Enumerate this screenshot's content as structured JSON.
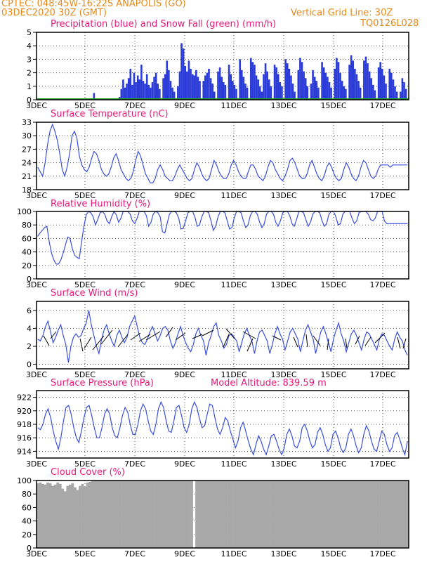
{
  "header": {
    "line1_left": "CPTEC:   048:45W-16:22S   ANAPOLIS (GO)",
    "line2_left": "03DEC2020 30Z (GMT)",
    "line2_right": "Vertical Grid Line: 30Z",
    "line3_right": "TQ0126L028"
  },
  "colors": {
    "header": "#e88a1a",
    "panel_title": "#e8187a",
    "precip": "#2a3bd8",
    "snow": "#1aa01a",
    "line": "#3a4fe0",
    "arrow": "#000000",
    "cloud": "#a8a8a8"
  },
  "chart_data": [
    {
      "type": "bar",
      "title": "Precipitation (blue) and Snow Fall (green) (mm/h)",
      "x_tick_labels": [
        "3DEC",
        "5DEC",
        "7DEC",
        "9DEC",
        "11DEC",
        "13DEC",
        "15DEC",
        "17DEC"
      ],
      "ylim": [
        0,
        5
      ],
      "y_ticks": [
        0,
        1,
        2,
        3,
        4,
        5
      ],
      "series": [
        {
          "name": "Precipitation (blue)",
          "values": [
            0,
            0,
            0,
            0,
            0,
            0,
            0,
            0,
            0,
            0,
            0,
            0,
            0,
            0,
            0,
            0,
            0,
            0,
            0,
            0,
            0,
            0,
            0,
            0,
            0,
            0,
            0,
            0,
            0,
            0,
            0,
            0.5,
            0,
            0,
            0,
            0,
            0,
            0,
            0,
            0,
            0,
            0,
            0,
            0,
            0,
            0.2,
            0.8,
            1.5,
            0.9,
            1.2,
            1.6,
            2.3,
            1.1,
            2.0,
            1.3,
            1.8,
            1.5,
            2.6,
            1.4,
            1.2,
            1.9,
            1.1,
            0.9,
            1.3,
            1.7,
            2.0,
            1.2,
            0.8,
            0,
            1.6,
            1.9,
            2.9,
            2.2,
            1.4,
            0.9,
            0.6,
            0,
            1.0,
            2.1,
            4.2,
            3.8,
            2.5,
            2.1,
            2.9,
            2.3,
            1.9,
            1.8,
            2.2,
            1.7,
            1.4,
            0,
            1.4,
            1.8,
            2.0,
            2.3,
            1.6,
            1.2,
            0.6,
            0,
            2.1,
            2.4,
            1.7,
            1.3,
            1.1,
            0,
            2.6,
            1.9,
            1.4,
            1.1,
            0.8,
            0,
            3.0,
            2.2,
            1.7,
            1.2,
            0.9,
            0,
            3.1,
            2.8,
            2.6,
            1.8,
            1.5,
            1.0,
            0.6,
            1.9,
            2.7,
            2.1,
            1.5,
            1.0,
            0,
            2.6,
            2.4,
            1.9,
            1.3,
            1.0,
            0,
            3.0,
            2.7,
            2.3,
            1.8,
            1.2,
            0.6,
            0,
            2.2,
            3.1,
            2.8,
            2.1,
            1.6,
            1.0,
            0,
            1.2,
            2.2,
            1.7,
            1.4,
            0.9,
            0,
            2.8,
            2.4,
            2.0,
            1.7,
            1.3,
            0.9,
            0,
            2.3,
            3.1,
            2.8,
            2.0,
            1.4,
            1.0,
            0.8,
            0,
            2.6,
            3.3,
            2.9,
            2.3,
            1.9,
            1.4,
            0.9,
            0,
            2.9,
            3.2,
            2.7,
            2.1,
            1.6,
            1.1,
            0.7,
            0,
            2.4,
            2.8,
            2.3,
            1.8,
            1.2,
            0,
            2.3,
            2.0,
            1.5,
            1.0,
            0.6,
            0,
            0.6,
            1.6,
            1.3,
            0.8,
            0
          ]
        },
        {
          "name": "Snow Fall (green)",
          "values": [
            0
          ]
        }
      ]
    },
    {
      "type": "line",
      "title": "Surface Temperature (nC)",
      "x_tick_labels": [
        "3DEC",
        "5DEC",
        "7DEC",
        "9DEC",
        "11DEC",
        "13DEC",
        "15DEC",
        "17DEC"
      ],
      "ylim": [
        18,
        33
      ],
      "y_ticks": [
        18,
        21,
        24,
        27,
        30,
        33
      ],
      "values": [
        23,
        22,
        21,
        24,
        28,
        31,
        32.5,
        31,
        29,
        26,
        22.5,
        21,
        23,
        26,
        30,
        31,
        29.5,
        25.5,
        23.5,
        22.5,
        22,
        23,
        25,
        26.5,
        26,
        24.5,
        22.5,
        21.5,
        21,
        21.5,
        23,
        25,
        26,
        24.5,
        22.5,
        21.5,
        20.5,
        20,
        20.5,
        22,
        24.5,
        26.5,
        25.5,
        23.5,
        21.5,
        20.5,
        19.5,
        19.5,
        20.5,
        22.5,
        23.5,
        22.5,
        21,
        20.5,
        20,
        20,
        21,
        22.5,
        23.5,
        22.5,
        21.5,
        20.5,
        20,
        20.5,
        22.5,
        24,
        23,
        21.5,
        20.5,
        20,
        20.5,
        22.5,
        24.5,
        23.5,
        22,
        21,
        20.5,
        20.5,
        21.5,
        23.5,
        24.5,
        23.5,
        22,
        21,
        20.5,
        20.5,
        22,
        23.5,
        23.5,
        22.5,
        21,
        20.5,
        20,
        21,
        23,
        24.5,
        24,
        22.5,
        21.5,
        20.5,
        20,
        21,
        22.5,
        24.5,
        25,
        24,
        22.5,
        21,
        20.5,
        20.5,
        21.5,
        23.5,
        24.5,
        23,
        21.5,
        20.5,
        20,
        21,
        23,
        24,
        23,
        21.5,
        20.5,
        20,
        20.5,
        22.5,
        24,
        23,
        21.5,
        20.5,
        20,
        21,
        23,
        24.5,
        24,
        22.5,
        21,
        20.5,
        21,
        22.5,
        23.5,
        23.5,
        23.5,
        23.5,
        23,
        23.5,
        23.5,
        23.5,
        23.5,
        23.5,
        23.5,
        23.5
      ]
    },
    {
      "type": "line",
      "title": "Relative Humidity (%)",
      "x_tick_labels": [
        "3DEC",
        "5DEC",
        "7DEC",
        "9DEC",
        "11DEC",
        "13DEC",
        "15DEC",
        "17DEC"
      ],
      "ylim": [
        0,
        100
      ],
      "y_ticks": [
        0,
        20,
        40,
        60,
        80,
        100
      ],
      "values": [
        63,
        68,
        72,
        76,
        78,
        55,
        38,
        28,
        22,
        22,
        28,
        38,
        50,
        62,
        60,
        45,
        35,
        32,
        30,
        55,
        78,
        95,
        100,
        98,
        92,
        80,
        88,
        98,
        100,
        96,
        86,
        82,
        92,
        100,
        95,
        84,
        90,
        100,
        100,
        100,
        96,
        86,
        82,
        90,
        100,
        100,
        100,
        94,
        78,
        84,
        96,
        100,
        98,
        92,
        70,
        68,
        82,
        96,
        100,
        100,
        98,
        90,
        74,
        75,
        86,
        98,
        100,
        100,
        92,
        78,
        80,
        92,
        100,
        100,
        98,
        86,
        72,
        78,
        92,
        100,
        100,
        98,
        86,
        74,
        76,
        90,
        100,
        100,
        98,
        86,
        76,
        80,
        94,
        100,
        100,
        96,
        84,
        76,
        82,
        96,
        100,
        100,
        96,
        84,
        78,
        86,
        98,
        100,
        100,
        94,
        82,
        78,
        88,
        100,
        100,
        98,
        88,
        78,
        84,
        96,
        100,
        100,
        98,
        86,
        78,
        82,
        96,
        100,
        100,
        92,
        80,
        82,
        96,
        100,
        100,
        100,
        90,
        82,
        86,
        98,
        100,
        100,
        100,
        96,
        88,
        86,
        90,
        100,
        100,
        100,
        86,
        82,
        82,
        82,
        82,
        82,
        82,
        82,
        82,
        82,
        82
      ]
    },
    {
      "type": "line",
      "title": "Surface Wind (m/s)",
      "x_tick_labels": [
        "3DEC",
        "5DEC",
        "7DEC",
        "9DEC",
        "11DEC",
        "13DEC",
        "15DEC",
        "17DEC"
      ],
      "ylim": [
        -0.5,
        7
      ],
      "y_ticks": [
        0,
        2,
        4,
        6
      ],
      "values": [
        2.8,
        2.6,
        3.2,
        4.2,
        4.8,
        3.6,
        2.4,
        3.0,
        3.8,
        4.4,
        3.2,
        2.2,
        0.2,
        2.0,
        3.0,
        3.4,
        3.0,
        3.2,
        4.0,
        4.6,
        6.0,
        4.4,
        3.2,
        2.0,
        1.2,
        2.8,
        3.8,
        4.4,
        3.4,
        2.6,
        2.0,
        3.2,
        3.8,
        3.0,
        2.4,
        3.0,
        4.2,
        4.8,
        5.4,
        4.2,
        3.0,
        2.4,
        2.2,
        2.8,
        3.6,
        4.2,
        3.4,
        2.6,
        3.2,
        4.0,
        4.2,
        3.8,
        2.6,
        1.8,
        2.4,
        3.4,
        4.2,
        3.2,
        2.4,
        1.8,
        1.4,
        2.2,
        3.4,
        4.0,
        3.2,
        2.6,
        1.0,
        2.4,
        3.2,
        4.2,
        4.6,
        3.2,
        2.6,
        1.8,
        2.2,
        3.2,
        3.4,
        3.0,
        2.6,
        1.4,
        2.4,
        3.4,
        4.0,
        3.2,
        2.6,
        1.2,
        2.6,
        3.6,
        3.8,
        3.2,
        2.6,
        1.2,
        2.2,
        3.4,
        4.2,
        3.4,
        2.8,
        1.6,
        2.6,
        3.6,
        4.0,
        3.4,
        2.8,
        1.4,
        2.6,
        3.8,
        4.4,
        3.6,
        2.8,
        1.2,
        2.4,
        3.6,
        4.2,
        3.4,
        2.4,
        1.4,
        2.8,
        3.8,
        4.6,
        3.4,
        2.6,
        1.4,
        2.4,
        3.4,
        3.8,
        3.2,
        2.4,
        1.6,
        2.8,
        3.6,
        3.4,
        2.8,
        2.2,
        1.6,
        2.8,
        3.4,
        3.2,
        2.6,
        2.0,
        1.6,
        2.8,
        3.6,
        3.0,
        2.6,
        1.6,
        1.0
      ]
    },
    {
      "type": "line",
      "title": "Surface Pressure (hPa)",
      "annotation": "Model Altitude: 839.59 m",
      "x_tick_labels": [
        "3DEC",
        "5DEC",
        "7DEC",
        "9DEC",
        "11DEC",
        "13DEC",
        "15DEC",
        "17DEC"
      ],
      "ylim": [
        913,
        923
      ],
      "y_ticks": [
        914,
        916,
        918,
        920,
        922
      ],
      "values": [
        917.5,
        917.2,
        918,
        919.5,
        920.3,
        919,
        917,
        915.5,
        914.3,
        916,
        918.5,
        920.5,
        920.8,
        919.5,
        917.5,
        916,
        915.3,
        917,
        919,
        920.5,
        920.8,
        919.3,
        917.5,
        916,
        916,
        917.5,
        919.5,
        920.3,
        919.5,
        917.5,
        916.3,
        916,
        917.5,
        919.3,
        920.5,
        919.8,
        918,
        916.5,
        916.5,
        918,
        920,
        921,
        920.3,
        918.5,
        917,
        916.5,
        918,
        920.3,
        921.3,
        920.5,
        918.5,
        917,
        916.8,
        918.5,
        920.5,
        920.8,
        919.3,
        917.5,
        916.8,
        918,
        920.3,
        921.3,
        920.5,
        918.8,
        917.5,
        917.8,
        919.5,
        921,
        920.8,
        919,
        917.3,
        916.5,
        917.5,
        919,
        918.5,
        917,
        915.8,
        914.5,
        915.5,
        917.5,
        918.3,
        917,
        915.5,
        914.3,
        913.5,
        915,
        916.3,
        915.5,
        914.3,
        913.5,
        914.8,
        916.3,
        916.5,
        915.5,
        914.3,
        913.5,
        914.5,
        916.5,
        917.3,
        916.3,
        914.8,
        914.5,
        915.5,
        917.5,
        918,
        917,
        915.5,
        914.5,
        915,
        916.8,
        917.5,
        916.5,
        915,
        914,
        914.5,
        916.5,
        917,
        916,
        914.5,
        913.8,
        914.5,
        916.5,
        917.3,
        916.3,
        914.8,
        913.8,
        914.5,
        916.5,
        917.8,
        917,
        915.5,
        914.3,
        914,
        915.5,
        917,
        916.5,
        915,
        914,
        914.5,
        916.3,
        916.8,
        915.8,
        914.5,
        913.5,
        915.5
      ]
    },
    {
      "type": "area",
      "title": "Cloud Cover (%)",
      "x_tick_labels": [
        "3DEC",
        "5DEC",
        "7DEC",
        "9DEC",
        "11DEC",
        "13DEC",
        "15DEC",
        "17DEC"
      ],
      "ylim": [
        0,
        100
      ],
      "y_ticks": [
        0,
        20,
        40,
        60,
        80,
        100
      ],
      "values": [
        96,
        97,
        95,
        94,
        97,
        96,
        92,
        94,
        97,
        95,
        88,
        84,
        92,
        94,
        96,
        90,
        86,
        92,
        95,
        91,
        97,
        98,
        100,
        100,
        100,
        100,
        100,
        100,
        100,
        100,
        100,
        100,
        100,
        100,
        100,
        100,
        100,
        100,
        100,
        100,
        100,
        100,
        100,
        100,
        100,
        100,
        100,
        100,
        100,
        100,
        100,
        100,
        100,
        100,
        100,
        100,
        100,
        100,
        100,
        100,
        100,
        100,
        100,
        0,
        100,
        100,
        100,
        100,
        100,
        100,
        100,
        100,
        100,
        100,
        100,
        100,
        100,
        100,
        100,
        100,
        100,
        100,
        100,
        100,
        100,
        100,
        100,
        100,
        100,
        100,
        100,
        100,
        100,
        100,
        100,
        100,
        100,
        100,
        100,
        100,
        100,
        100,
        100,
        100,
        100,
        100,
        100,
        100,
        100,
        100,
        100,
        100,
        100,
        100,
        100,
        100,
        100,
        100,
        100,
        100,
        100,
        100,
        100,
        100,
        100,
        100,
        100,
        100,
        100,
        100,
        100,
        100,
        100,
        100,
        100,
        100,
        100,
        100,
        100,
        100,
        100,
        100,
        100,
        100,
        100,
        100,
        100,
        100,
        100,
        100
      ]
    }
  ]
}
